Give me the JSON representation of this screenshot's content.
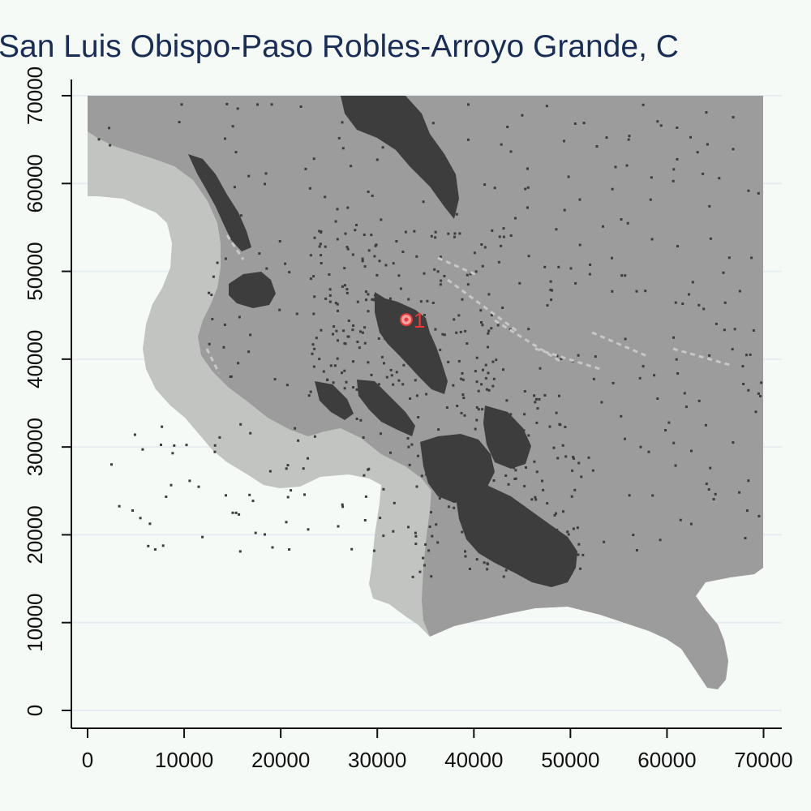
{
  "title": "San Luis Obispo-Paso Robles-Arroyo Grande, C",
  "colors": {
    "background": "#f5faf7",
    "title": "#1a2e55",
    "ocean_buffer": "#c2c4c2",
    "land": "#9c9c9c",
    "urban": "#3d3d3d",
    "light_patches": "#c7c7c7",
    "marker": "#e83a3a",
    "gridline": "#e6edf2"
  },
  "chart_data": {
    "type": "map",
    "xlim": [
      0,
      70000
    ],
    "ylim": [
      0,
      70000
    ],
    "x_ticks": [
      0,
      10000,
      20000,
      30000,
      40000,
      50000,
      60000,
      70000
    ],
    "x_tick_labels": [
      "0",
      "10000",
      "20000",
      "30000",
      "40000",
      "50000",
      "60000",
      "70000"
    ],
    "y_ticks": [
      0,
      10000,
      20000,
      30000,
      40000,
      50000,
      60000,
      70000
    ],
    "y_tick_labels": [
      "0",
      "10000",
      "20000",
      "30000",
      "40000",
      "50000",
      "60000",
      "70000"
    ],
    "grid": true,
    "markers": [
      {
        "label": "1",
        "x": 33000,
        "y": 44500
      }
    ]
  }
}
